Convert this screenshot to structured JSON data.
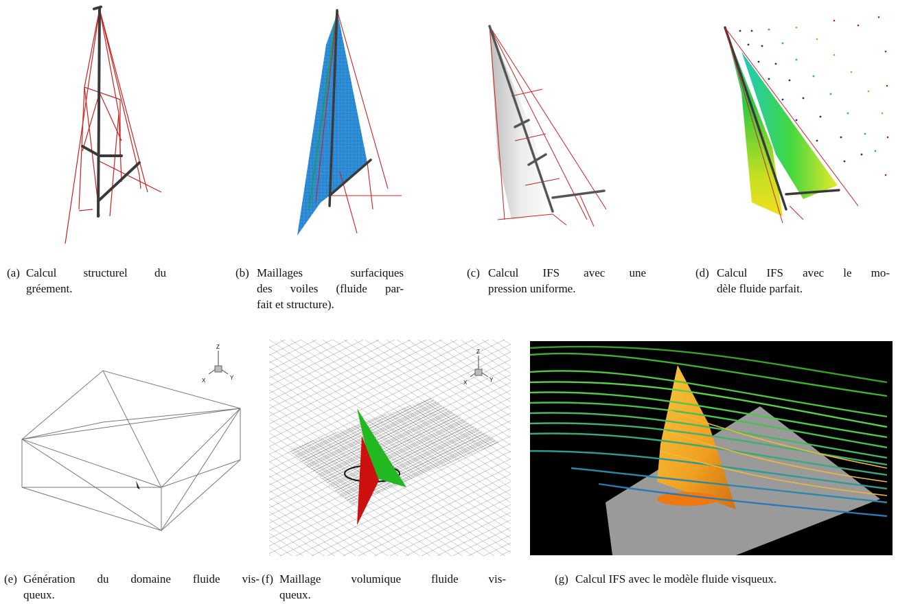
{
  "figure": {
    "panels": [
      {
        "tag": "(a)",
        "line1": "Calcul structurel du",
        "line2": "gréement.",
        "line3": ""
      },
      {
        "tag": "(b)",
        "line1": "Maillages surfaciques",
        "line2": "des voiles (fluide par-",
        "line3": "fait et structure)."
      },
      {
        "tag": "(c)",
        "line1": "Calcul IFS avec une",
        "line2": "pression uniforme.",
        "line3": ""
      },
      {
        "tag": "(d)",
        "line1": "Calcul IFS avec le mo-",
        "line2": "dèle fluide parfait.",
        "line3": ""
      },
      {
        "tag": "(e)",
        "line1": "Génération du domaine fluide vis-",
        "line2": "queux.",
        "line3": ""
      },
      {
        "tag": "(f)",
        "line1": "Maillage volumique fluide vis-",
        "line2": "queux.",
        "line3": ""
      },
      {
        "tag": "(g)",
        "line1": "Calcul IFS avec le modèle fluide visqueux.",
        "line2": "",
        "line3": ""
      }
    ],
    "axis_labels": {
      "z": "Z",
      "x": "X",
      "y": "Y"
    },
    "colors": {
      "rigging": "#cc1f1f",
      "mast": "#3a3a3a",
      "mesh_blue": "#2f8fd8",
      "sail_green": "#1faa1f",
      "sail_red": "#cc1010",
      "viscous_bg": "#000000",
      "plane_gray": "#9a9a9a",
      "sail_orange": "#f0a020"
    }
  }
}
